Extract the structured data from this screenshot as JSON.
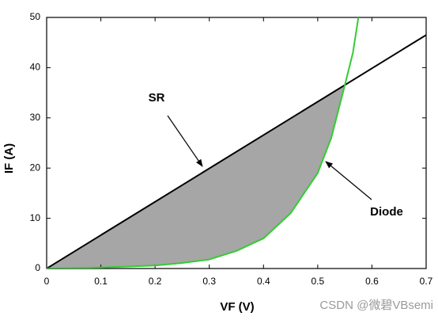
{
  "chart_data": {
    "type": "line",
    "x_label": "VF (V)",
    "y_label": "IF (A)",
    "annotations": [
      "SR",
      "Diode"
    ],
    "watermark": "CSDN @微碧VBsemi",
    "xlim": [
      0,
      0.7
    ],
    "xticks": [
      0,
      0.1,
      0.2,
      0.3,
      0.4,
      0.5,
      0.6,
      0.7
    ],
    "ylim": [
      0,
      50
    ],
    "yticks": [
      0,
      10,
      20,
      30,
      40,
      50
    ],
    "shade_color": "#a6a6a6",
    "series": [
      {
        "name": "SR",
        "color": "#000000",
        "x": [
          0,
          0.7
        ],
        "values": [
          0,
          46.5
        ]
      },
      {
        "name": "Diode",
        "color": "#33cc33",
        "x": [
          0,
          0.1,
          0.2,
          0.25,
          0.3,
          0.35,
          0.4,
          0.45,
          0.5,
          0.525,
          0.55,
          0.565,
          0.575
        ],
        "values": [
          0,
          0.2,
          0.6,
          1.1,
          1.8,
          3.5,
          6,
          11,
          19,
          26,
          36.5,
          43,
          50
        ]
      }
    ]
  }
}
